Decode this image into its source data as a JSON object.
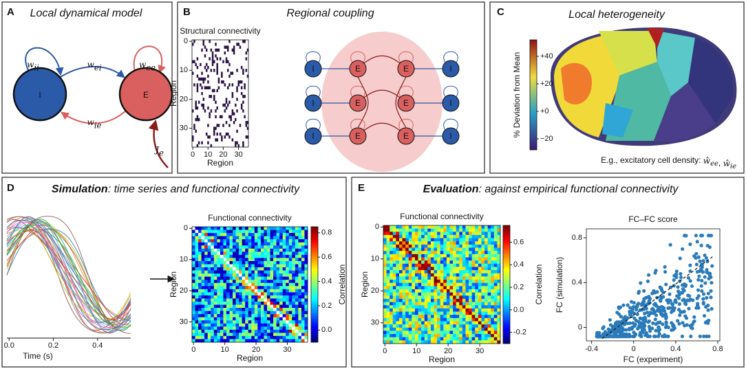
{
  "panels": {
    "A": {
      "letter": "A",
      "title": "Local dynamical model",
      "nodes": [
        "I",
        "E"
      ],
      "edges": [
        {
          "symbol": "w",
          "subscript": "ii"
        },
        {
          "symbol": "w",
          "subscript": "ei"
        },
        {
          "symbol": "w",
          "subscript": "ee"
        },
        {
          "symbol": "w",
          "subscript": "ie"
        }
      ],
      "input": {
        "symbol": "J",
        "subscript": "e"
      }
    },
    "B": {
      "letter": "B",
      "title": "Regional coupling",
      "matrix": {
        "title": "Structural connectivity",
        "xlabel": "Region",
        "ylabel": "Region",
        "xlim": [
          -0.5,
          36.5
        ],
        "ylim": [
          -0.5,
          36.5
        ],
        "xticks": [
          0,
          10,
          20,
          30
        ],
        "yticks": [
          0,
          10,
          20,
          30
        ]
      },
      "diagram_nodes": {
        "excitatory": "E",
        "inhibitory": "I"
      }
    },
    "C": {
      "letter": "C",
      "title": "Local heterogeneity",
      "colorbar": {
        "label": "% Deviation from Mean",
        "ylim": [
          -28,
          52
        ],
        "yticks": [
          {
            "value": 40,
            "label": "+40"
          },
          {
            "value": 20,
            "label": "+20"
          },
          {
            "value": 0,
            "label": "+0"
          },
          {
            "value": -20,
            "label": "−20"
          }
        ]
      },
      "caption": "E.g., excitatory cell density: ",
      "caption_math": [
        {
          "symbol": "ŵ",
          "subscript": "ee"
        },
        {
          "symbol": "ŵ",
          "subscript": "ie"
        }
      ]
    },
    "D": {
      "letter": "D",
      "title_emphasis": "Simulation",
      "title": ": time series and functional connectivity",
      "timeseries": {
        "xlabel": "Time (s)",
        "xlim": [
          -0.01,
          0.55
        ],
        "xticks": [
          {
            "value": 0,
            "label": "0.0"
          },
          {
            "value": 0.2,
            "label": "0.2"
          },
          {
            "value": 0.4,
            "label": "0.4"
          }
        ]
      },
      "matrix": {
        "title": "Functional connectivity",
        "xlabel": "Region",
        "ylabel": "Region",
        "xlim": [
          -0.5,
          36.5
        ],
        "ylim": [
          -0.5,
          36.5
        ],
        "xticks": [
          0,
          10,
          20,
          30
        ],
        "yticks": [
          0,
          10,
          20,
          30
        ],
        "colorbar": {
          "label": "Correlation",
          "ylim": [
            -0.1,
            0.85
          ],
          "yticks": [
            {
              "value": 0,
              "label": "0.0"
            },
            0.2,
            0.4,
            0.6,
            0.8
          ]
        }
      }
    },
    "E": {
      "letter": "E",
      "title_emphasis": "Evaluation",
      "title": ": against empirical functional connectivity",
      "matrix": {
        "title": "Functional connectivity",
        "xlabel": "Region",
        "ylabel": "Region",
        "xlim": [
          -0.5,
          36.5
        ],
        "ylim": [
          -0.5,
          36.5
        ],
        "xticks": [
          0,
          10,
          20,
          30
        ],
        "yticks": [
          0,
          10,
          20,
          30
        ],
        "colorbar": {
          "label": "Correlation",
          "ylim": [
            -0.3,
            0.75
          ],
          "yticks": [
            -0.2,
            {
              "value": 0,
              "label": "0.0"
            },
            0.2,
            0.4,
            0.6
          ]
        }
      },
      "scatter": {
        "type": "scatter",
        "title": "FC–FC score",
        "xlabel": "FC (experiment)",
        "ylabel": "FC (simulation)",
        "xlim": [
          -0.45,
          0.82
        ],
        "ylim": [
          -0.12,
          0.88
        ],
        "xticks": [
          -0.4,
          0,
          0.4,
          0.8
        ],
        "yticks": [
          0,
          0.4,
          0.8
        ],
        "color": "#2b7bba",
        "fit_line": {
          "x": [
            -0.3,
            0.75
          ],
          "y": [
            -0.1,
            0.63
          ]
        }
      }
    }
  }
}
